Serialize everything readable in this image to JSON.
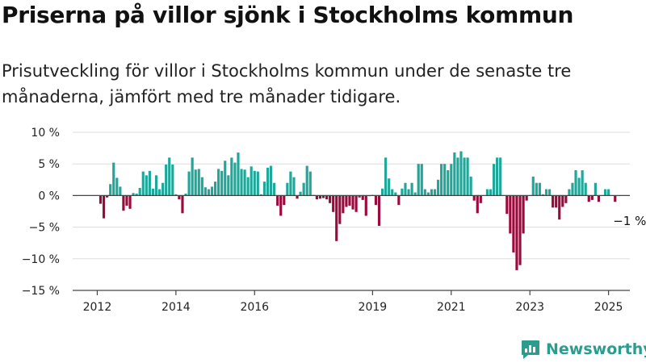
{
  "title": "Priserna på villor sjönk i Stockholms kommun",
  "subtitle": "Prisutveckling för villor i Stockholms kommun under de senaste tre månaderna, jämfört med tre månader tidigare.",
  "brand": "Newsworthy",
  "colors": {
    "positive": "#1fa79a",
    "negative": "#9b0a3c",
    "grid": "#dddddd",
    "axis": "#444444"
  },
  "chart_data": {
    "type": "bar",
    "title": "Priserna på villor sjönk i Stockholms kommun",
    "xlabel": "",
    "ylabel": "",
    "ylim": [
      -15,
      10
    ],
    "y_ticks": [
      {
        "value": 10,
        "label": "10 %"
      },
      {
        "value": 5,
        "label": "5 %"
      },
      {
        "value": 0,
        "label": "0 %"
      },
      {
        "value": -5,
        "label": "−5 %"
      },
      {
        "value": -10,
        "label": "−10 %"
      },
      {
        "value": -15,
        "label": "−15 %"
      }
    ],
    "x_ticks": [
      {
        "index": 7,
        "label": "2012"
      },
      {
        "index": 31,
        "label": "2014"
      },
      {
        "index": 55,
        "label": "2016"
      },
      {
        "index": 91,
        "label": "2019"
      },
      {
        "index": 115,
        "label": "2021"
      },
      {
        "index": 139,
        "label": "2023"
      },
      {
        "index": 163,
        "label": "2025"
      }
    ],
    "values": [
      0,
      0,
      0,
      0,
      0,
      0,
      0,
      0,
      -1.3,
      -3.6,
      -0.3,
      1.8,
      5.2,
      2.8,
      1.4,
      -2.4,
      -1.6,
      -2.1,
      0.4,
      0.3,
      1.2,
      3.8,
      3.2,
      3.9,
      1.1,
      3.2,
      1.0,
      2.0,
      4.9,
      6.0,
      4.9,
      0.2,
      -0.6,
      -2.8,
      0.3,
      3.8,
      6.0,
      4.1,
      4.2,
      2.9,
      1.3,
      1.0,
      1.4,
      2.2,
      4.2,
      3.9,
      5.5,
      3.2,
      6.0,
      5.2,
      6.8,
      4.2,
      4.1,
      2.9,
      4.6,
      3.9,
      3.8,
      0.2,
      2.2,
      4.4,
      4.7,
      2.0,
      -1.6,
      -3.2,
      -1.5,
      2.0,
      3.8,
      2.9,
      -0.5,
      0.6,
      2.0,
      4.7,
      3.8,
      0.1,
      -0.6,
      -0.5,
      -0.4,
      -0.6,
      -1.2,
      -2.6,
      -7.2,
      -4.5,
      -2.8,
      -1.8,
      -1.6,
      -2.2,
      -2.6,
      -0.3,
      -0.7,
      -3.2,
      -0.1,
      0.1,
      -1.5,
      -4.8,
      1.1,
      6.0,
      2.7,
      1.0,
      0.5,
      -1.5,
      1.1,
      2.0,
      1.0,
      2.0,
      0.5,
      5.0,
      5.0,
      1.0,
      0.5,
      1.0,
      1.0,
      2.5,
      5.0,
      5.0,
      4.0,
      5.0,
      6.8,
      6.0,
      7.0,
      6.0,
      6.0,
      3.0,
      -0.8,
      -2.8,
      -1.2,
      0,
      1.0,
      1.0,
      5.0,
      6.0,
      6.0,
      0,
      -2.9,
      -6.0,
      -9.0,
      -11.8,
      -11.0,
      -6.0,
      -0.8,
      0,
      3.0,
      2.0,
      2.0,
      0.2,
      1.0,
      1.0,
      -1.9,
      -1.9,
      -3.8,
      -1.8,
      -1.2,
      1.0,
      2.0,
      4.0,
      2.8,
      4.0,
      2.0,
      -1.0,
      -0.7,
      2.0,
      -1.0,
      0,
      1.0,
      1.0,
      0,
      -1.0,
      0,
      0,
      0,
      0
    ],
    "annotations": [
      {
        "index": 176,
        "value": -1,
        "text": "−1 %"
      }
    ]
  }
}
